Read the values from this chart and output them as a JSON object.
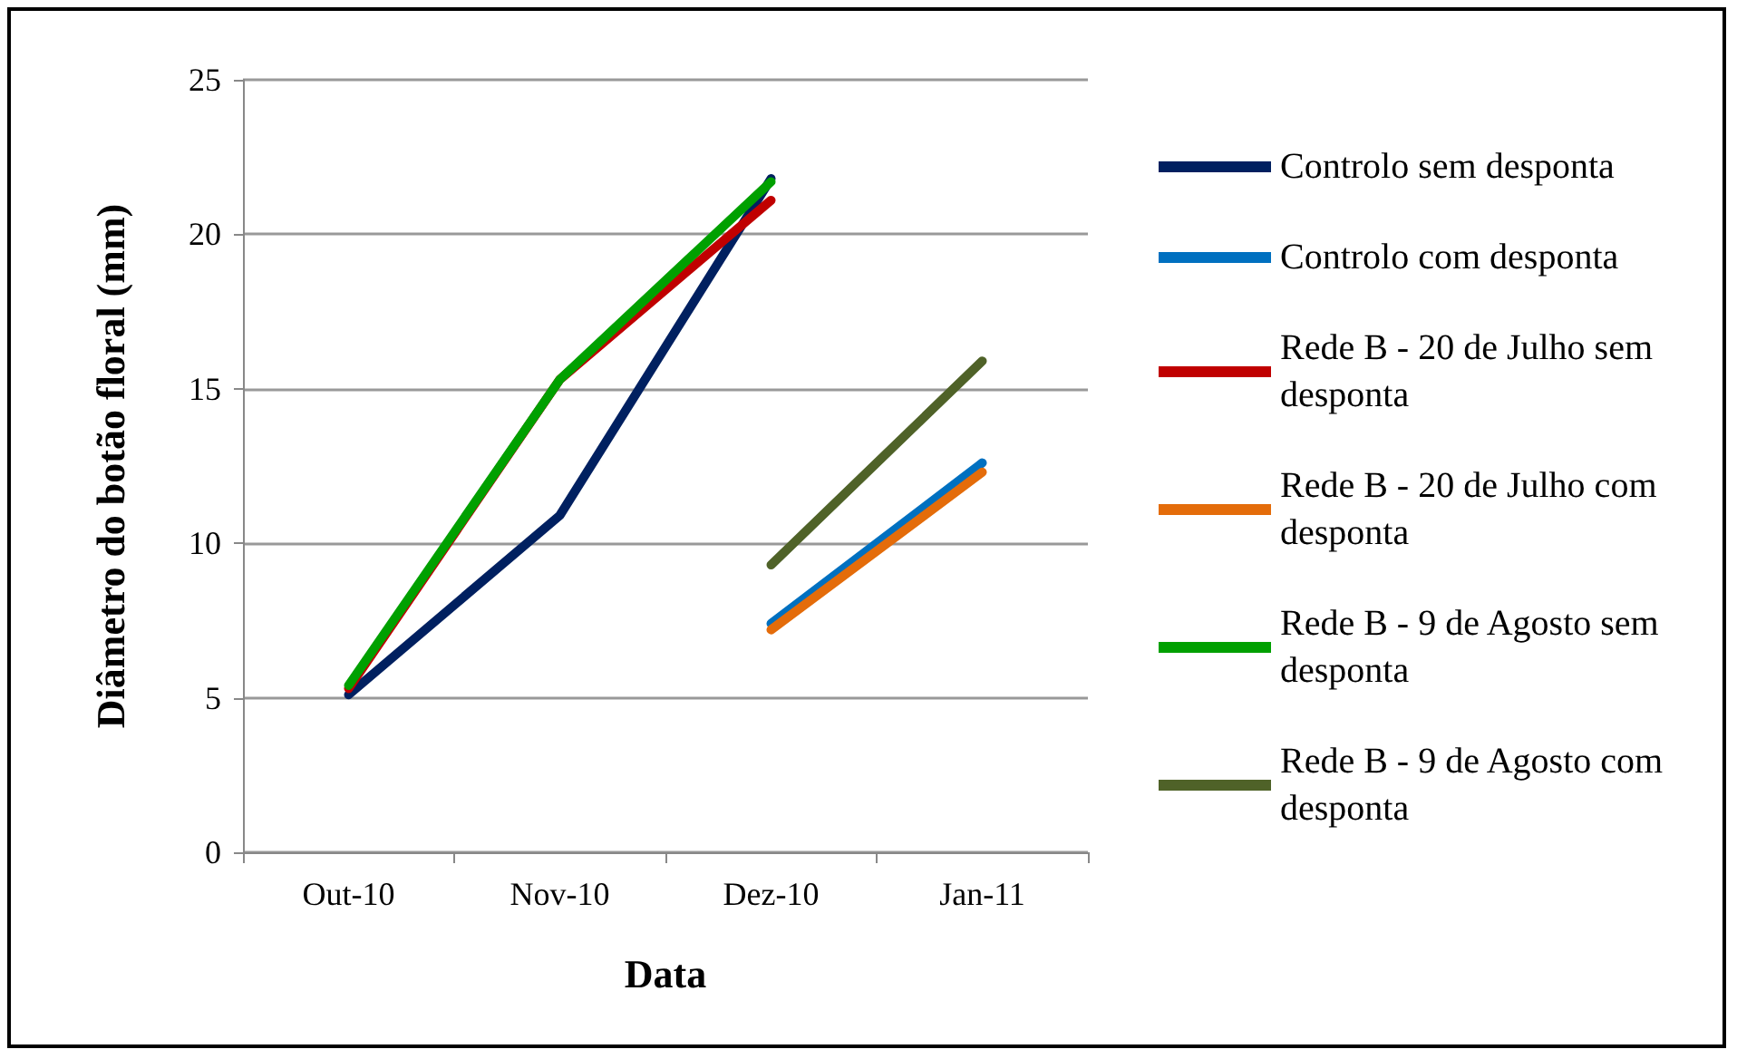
{
  "chart_data": {
    "type": "line",
    "xlabel": "Data",
    "ylabel": "Diâmetro do botão floral (mm)",
    "categories": [
      "Out-10",
      "Nov-10",
      "Dez-10",
      "Jan-11"
    ],
    "ylim": [
      0,
      25
    ],
    "yticks": [
      0,
      5,
      10,
      15,
      20,
      25
    ],
    "grid": "y",
    "legend": "right",
    "marker": "none",
    "line_style": "solid",
    "series": [
      {
        "name": "Controlo sem desponta",
        "color": "#002060",
        "values": [
          5.1,
          10.9,
          21.8,
          null
        ]
      },
      {
        "name": "Controlo com desponta",
        "color": "#0070c0",
        "values": [
          null,
          null,
          7.4,
          12.6
        ]
      },
      {
        "name": "Rede B - 20 de Julho sem desponta",
        "color": "#c00000",
        "values": [
          5.3,
          15.3,
          21.1,
          null
        ]
      },
      {
        "name": "Rede B - 20 de Julho com desponta",
        "color": "#e46c0a",
        "values": [
          null,
          null,
          7.2,
          12.3
        ]
      },
      {
        "name": "Rede B - 9 de Agosto sem desponta",
        "color": "#00a000",
        "values": [
          5.4,
          15.3,
          21.7,
          null
        ]
      },
      {
        "name": "Rede B - 9 de Agosto com desponta",
        "color": "#4f6228",
        "values": [
          null,
          null,
          9.3,
          15.9
        ]
      }
    ]
  }
}
